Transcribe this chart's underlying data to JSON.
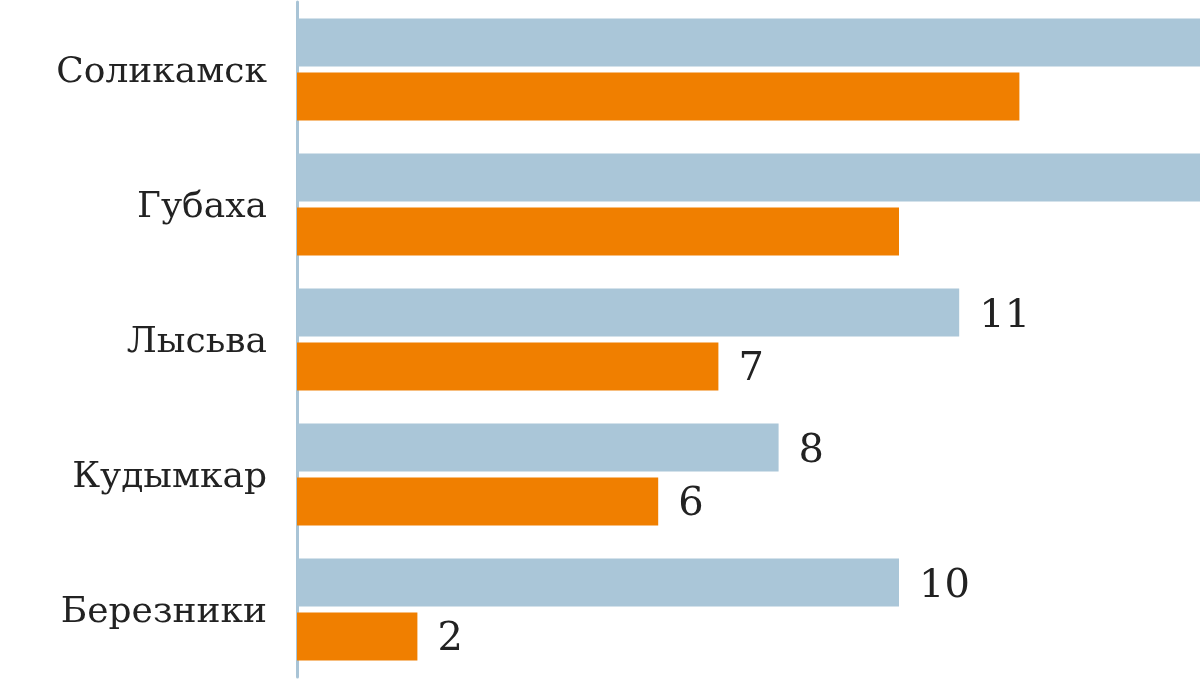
{
  "chart_data": {
    "type": "bar",
    "orientation": "horizontal",
    "categories": [
      "Соликамск",
      "Губаха",
      "Лысьва",
      "Кудымкар",
      "Березники"
    ],
    "series": [
      {
        "color": "#aac6d8",
        "values": [
          15,
          15,
          11,
          8,
          10
        ],
        "value_labels": [
          null,
          null,
          "11",
          "8",
          "10"
        ]
      },
      {
        "color": "#f07f00",
        "values": [
          12,
          10,
          7,
          6,
          2
        ],
        "value_labels": [
          null,
          null,
          "7",
          "6",
          "2"
        ]
      }
    ],
    "xlim": [
      0,
      15
    ],
    "tick_labels": "y",
    "grid": false
  }
}
